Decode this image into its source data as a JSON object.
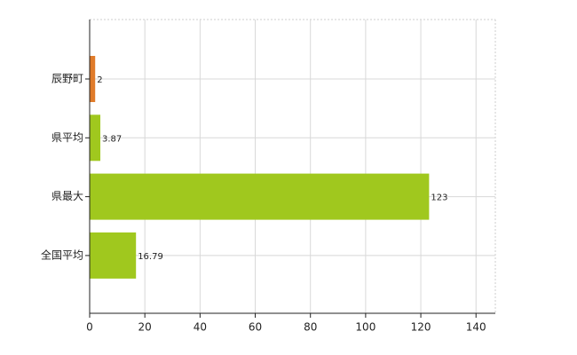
{
  "chart_data": {
    "type": "bar",
    "orientation": "horizontal",
    "categories": [
      "辰野町",
      "県平均",
      "県最大",
      "全国平均"
    ],
    "values": [
      2,
      3.87,
      123,
      16.79
    ],
    "colors": [
      "#e07b2a",
      "#a0c81e",
      "#a0c81e",
      "#a0c81e"
    ],
    "xlim": [
      0,
      147
    ],
    "xticks": [
      0,
      20,
      40,
      60,
      80,
      100,
      120,
      140
    ],
    "grid": true
  }
}
